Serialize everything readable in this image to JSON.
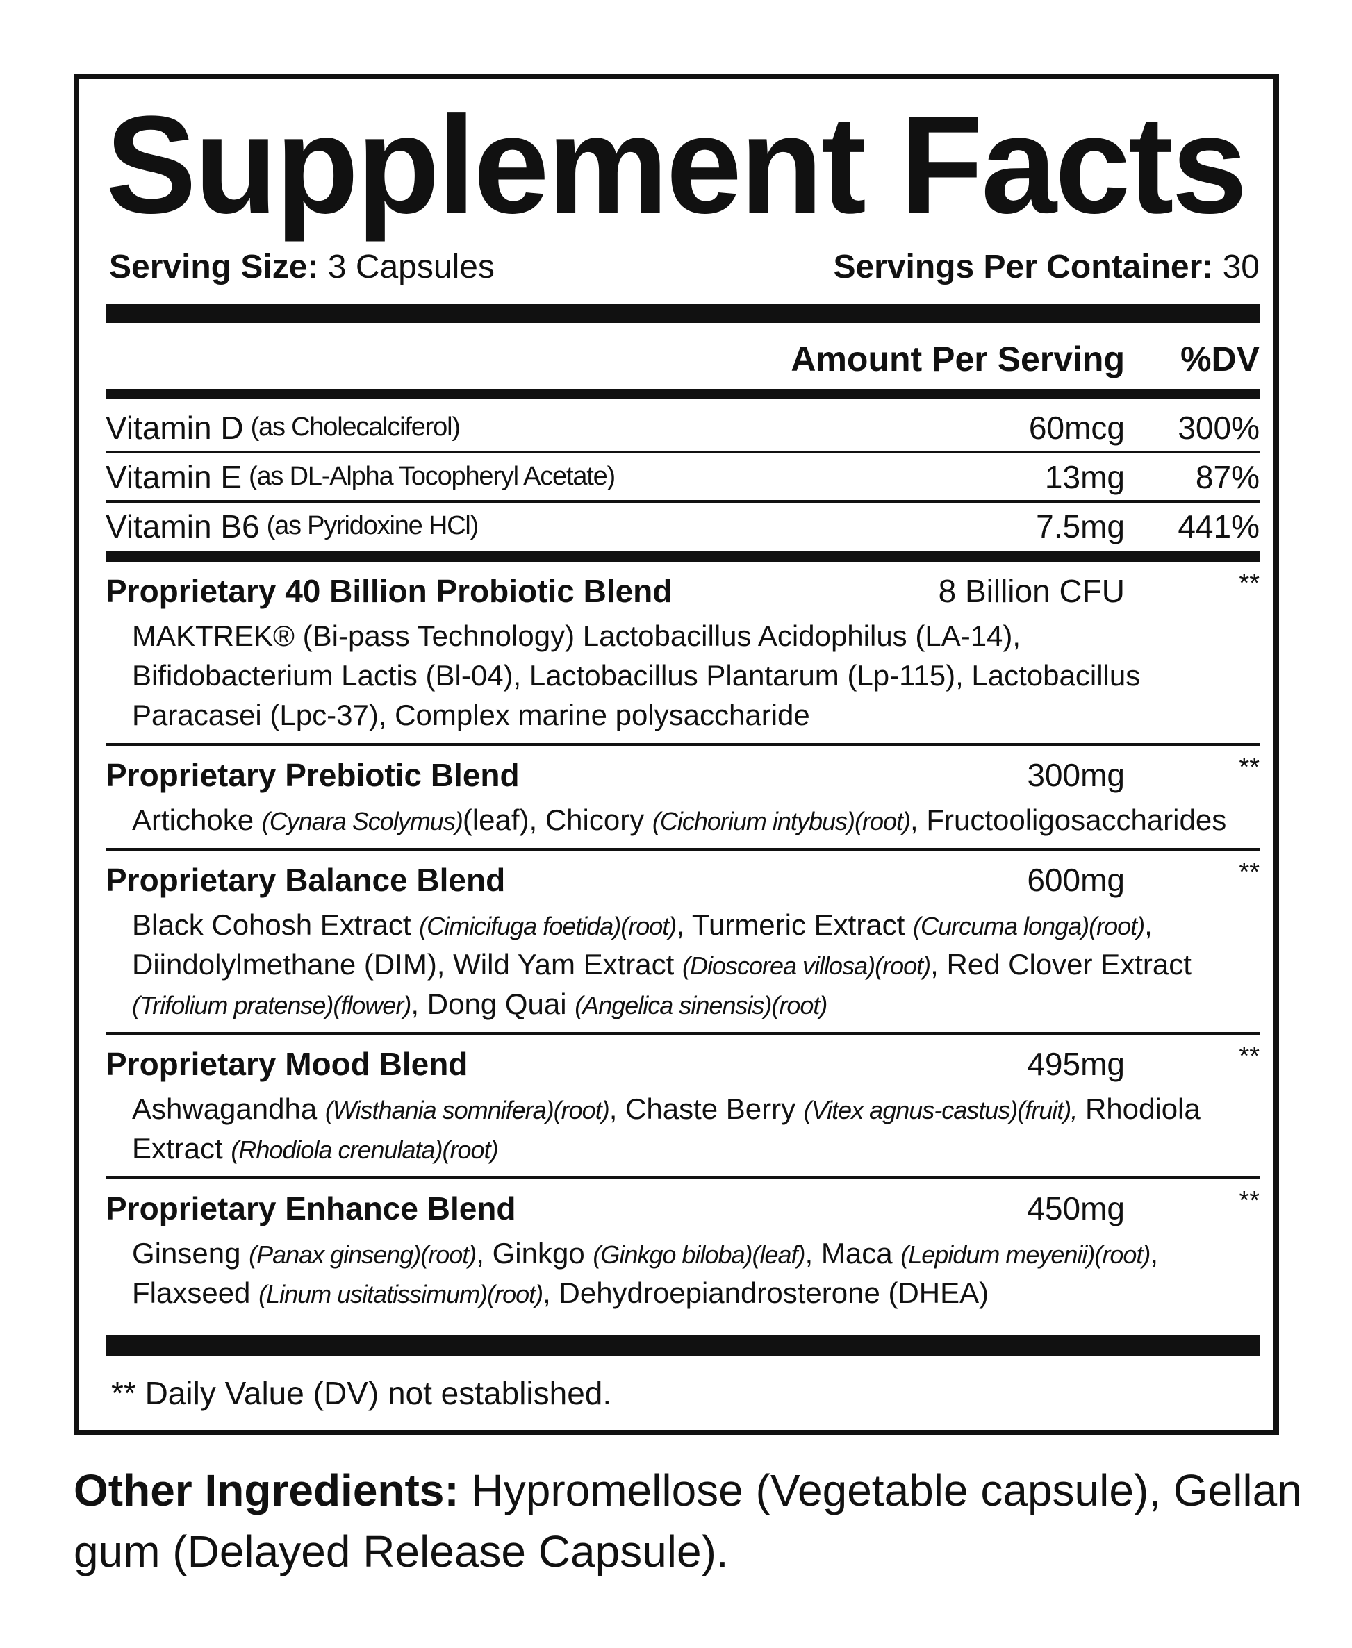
{
  "header": {
    "title": "Supplement Facts"
  },
  "serving": {
    "size_label": "Serving Size:",
    "size_value": "3 Capsules",
    "per_container_label": "Servings Per Container:",
    "per_container_value": "30"
  },
  "columns": {
    "amount": "Amount Per Serving",
    "dv": "%DV"
  },
  "vitamins": [
    {
      "name": "Vitamin D",
      "source": "(as Cholecalciferol)",
      "amount": "60mcg",
      "dv": "300%"
    },
    {
      "name": "Vitamin E",
      "source": "(as DL-Alpha Tocopheryl Acetate)",
      "amount": "13mg",
      "dv": "87%"
    },
    {
      "name": "Vitamin B6",
      "source": "(as Pyridoxine HCl)",
      "amount": "7.5mg",
      "dv": "441%"
    }
  ],
  "blends": [
    {
      "name": "Proprietary 40 Billion Probiotic Blend",
      "amount": "8 Billion CFU",
      "dv": "**",
      "lines": [
        [
          {
            "text": "MAKTREK® (Bi-pass Technology) Lactobacillus Acidophilus (LA-14),"
          }
        ],
        [
          {
            "text": "Bifidobacterium Lactis (Bl-04), Lactobacillus Plantarum (Lp-115), Lactobacillus"
          }
        ],
        [
          {
            "text": "Paracasei (Lpc-37), Complex marine polysaccharide"
          }
        ]
      ]
    },
    {
      "name": "Proprietary Prebiotic Blend",
      "amount": "300mg",
      "dv": "**",
      "lines": [
        [
          {
            "text": "Artichoke "
          },
          {
            "text": "(Cynara Scolymus)",
            "italic": true
          },
          {
            "text": "(leaf), Chicory "
          },
          {
            "text": "(Cichorium intybus)(root)",
            "italic": true
          },
          {
            "text": ", Fructooligosaccharides"
          }
        ]
      ]
    },
    {
      "name": "Proprietary Balance Blend",
      "amount": "600mg",
      "dv": "**",
      "lines": [
        [
          {
            "text": "Black Cohosh Extract "
          },
          {
            "text": "(Cimicifuga foetida)(root)",
            "italic": true
          },
          {
            "text": ", Turmeric Extract "
          },
          {
            "text": "(Curcuma longa)(root)",
            "italic": true
          },
          {
            "text": ","
          }
        ],
        [
          {
            "text": "Diindolylmethane (DIM), Wild Yam Extract "
          },
          {
            "text": "(Dioscorea villosa)(root)",
            "italic": true
          },
          {
            "text": ", Red Clover Extract"
          }
        ],
        [
          {
            "text": "(Trifolium pratense)(flower)",
            "italic": true
          },
          {
            "text": ", Dong Quai "
          },
          {
            "text": "(Angelica sinensis)(root)",
            "italic": true
          }
        ]
      ]
    },
    {
      "name": "Proprietary Mood Blend",
      "amount": "495mg",
      "dv": "**",
      "lines": [
        [
          {
            "text": "Ashwagandha "
          },
          {
            "text": "(Wisthania somnifera)(root)",
            "italic": true
          },
          {
            "text": ", Chaste Berry "
          },
          {
            "text": "(Vitex agnus-castus)(fruit),",
            "italic": true
          },
          {
            "text": " Rhodiola"
          }
        ],
        [
          {
            "text": "Extract "
          },
          {
            "text": "(Rhodiola crenulata)(root)",
            "italic": true
          }
        ]
      ]
    },
    {
      "name": "Proprietary Enhance Blend",
      "amount": "450mg",
      "dv": "**",
      "lines": [
        [
          {
            "text": "Ginseng "
          },
          {
            "text": "(Panax ginseng)(root)",
            "italic": true
          },
          {
            "text": ", Ginkgo "
          },
          {
            "text": "(Ginkgo biloba)(leaf)",
            "italic": true
          },
          {
            "text": ", Maca "
          },
          {
            "text": "(Lepidum meyenii)(root)",
            "italic": true
          },
          {
            "text": ","
          }
        ],
        [
          {
            "text": "Flaxseed "
          },
          {
            "text": "(Linum usitatissimum)(root)",
            "italic": true
          },
          {
            "text": ", Dehydroepiandrosterone (DHEA)"
          }
        ]
      ]
    }
  ],
  "footnote": "** Daily Value (DV) not established.",
  "other_ingredients": {
    "label": "Other Ingredients:",
    "text": "Hypromellose (Vegetable capsule), Gellan gum (Delayed Release Capsule)."
  }
}
